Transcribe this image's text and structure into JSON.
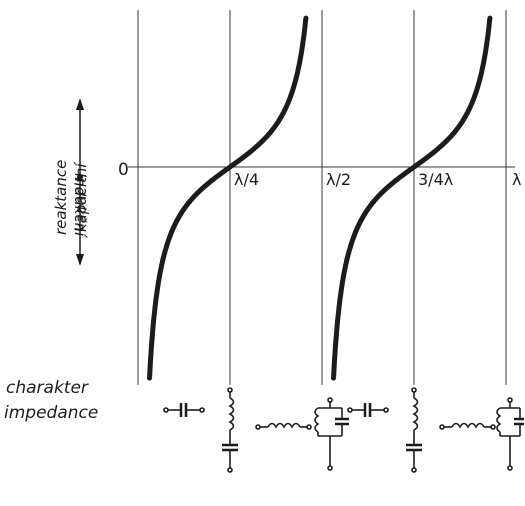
{
  "axis": {
    "zero_label": "0",
    "tick_labels": [
      "λ/4",
      "λ/2",
      "3/4λ",
      "λ"
    ],
    "y_label_top": "indukční",
    "y_label_mid": "reaktance",
    "y_label_bottom": "kapacitní"
  },
  "bottom": {
    "row_label_1": "charakter",
    "row_label_2": "impedance",
    "circuits": [
      "series-capacitor",
      "series-inductor-shunt-capacitor",
      "series-inductor",
      "parallel-lc-tank",
      "series-capacitor",
      "series-inductor-shunt-capacitor",
      "series-inductor",
      "parallel-lc-tank"
    ]
  },
  "chart_data": {
    "type": "line",
    "x_ticks": [
      "λ/4",
      "λ/2",
      "3/4λ",
      "λ"
    ],
    "y_zero_label": "0",
    "curve_shape": "tan-like periodic reactance vs. line length",
    "zero_crossings": [
      "λ/4",
      "3/4λ"
    ],
    "vertical_asymptotes": [
      "0",
      "λ/2",
      "λ"
    ],
    "grid": true
  }
}
